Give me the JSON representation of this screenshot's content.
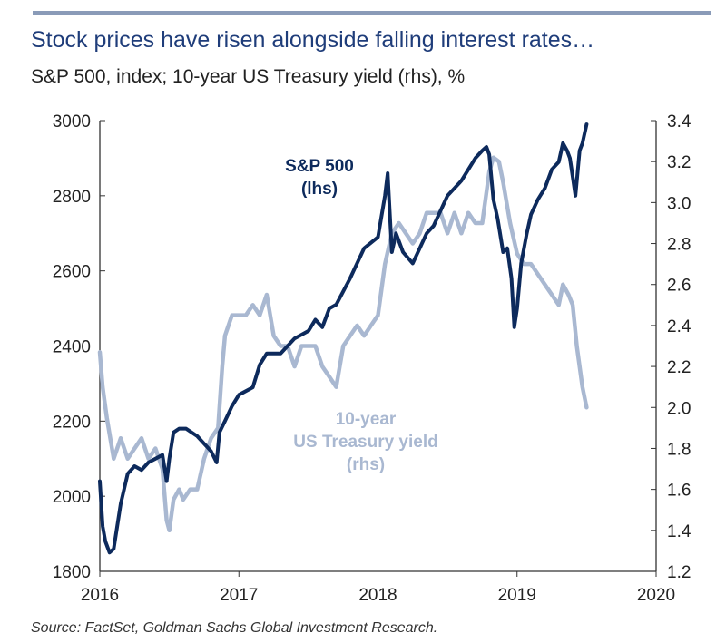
{
  "header": {
    "title": "Stock prices have risen alongside falling interest rates…",
    "subtitle": "S&P 500, index; 10-year US Treasury yield (rhs), %"
  },
  "footer": {
    "source": "Source: FactSet, Goldman Sachs Global Investment Research."
  },
  "chart_data": {
    "type": "line",
    "title": "Stock prices have risen alongside falling interest rates…",
    "subtitle": "S&P 500, index; 10-year US Treasury yield (rhs), %",
    "x_ticks": [
      "2016",
      "2017",
      "2018",
      "2019",
      "2020"
    ],
    "xlim": [
      2016,
      2020
    ],
    "y_left": {
      "ticks": [
        "1800",
        "2000",
        "2200",
        "2400",
        "2600",
        "2800",
        "3000"
      ],
      "lim": [
        1800,
        3000
      ]
    },
    "y_right": {
      "ticks": [
        "1.2",
        "1.4",
        "1.6",
        "1.8",
        "2.0",
        "2.2",
        "2.4",
        "2.6",
        "2.8",
        "3.0",
        "3.2",
        "3.4"
      ],
      "lim": [
        1.2,
        3.4
      ]
    },
    "grid": false,
    "colors": {
      "sp500": "#0d2a5c",
      "treasury": "#a9b8d1",
      "axis": "#333333",
      "topbar": "#8a9bb8"
    },
    "annotations": [
      {
        "lines": [
          "S&P 500",
          "(lhs)"
        ],
        "series": "S&P 500"
      },
      {
        "lines": [
          "10-year",
          "US Treasury yield",
          "(rhs)"
        ],
        "series": "10-year US Treasury yield"
      }
    ],
    "series": [
      {
        "name": "S&P 500",
        "axis": "left",
        "x": [
          2016.0,
          2016.02,
          2016.04,
          2016.07,
          2016.1,
          2016.15,
          2016.2,
          2016.25,
          2016.3,
          2016.35,
          2016.4,
          2016.45,
          2016.48,
          2016.5,
          2016.53,
          2016.57,
          2016.62,
          2016.7,
          2016.75,
          2016.8,
          2016.84,
          2016.86,
          2016.9,
          2016.95,
          2017.0,
          2017.1,
          2017.15,
          2017.2,
          2017.3,
          2017.35,
          2017.4,
          2017.45,
          2017.5,
          2017.55,
          2017.6,
          2017.65,
          2017.7,
          2017.8,
          2017.9,
          2018.0,
          2018.05,
          2018.07,
          2018.1,
          2018.13,
          2018.18,
          2018.25,
          2018.3,
          2018.35,
          2018.4,
          2018.5,
          2018.6,
          2018.7,
          2018.75,
          2018.78,
          2018.8,
          2018.83,
          2018.86,
          2018.9,
          2018.93,
          2018.96,
          2018.98,
          2019.0,
          2019.03,
          2019.07,
          2019.1,
          2019.15,
          2019.2,
          2019.25,
          2019.3,
          2019.33,
          2019.36,
          2019.38,
          2019.4,
          2019.42,
          2019.45,
          2019.47,
          2019.5
        ],
        "values": [
          2040,
          1920,
          1880,
          1850,
          1860,
          1980,
          2060,
          2080,
          2070,
          2090,
          2100,
          2110,
          2040,
          2100,
          2170,
          2180,
          2180,
          2160,
          2140,
          2120,
          2090,
          2170,
          2200,
          2240,
          2270,
          2290,
          2350,
          2380,
          2380,
          2400,
          2420,
          2430,
          2440,
          2470,
          2450,
          2500,
          2510,
          2580,
          2660,
          2690,
          2800,
          2860,
          2650,
          2700,
          2650,
          2620,
          2660,
          2700,
          2720,
          2800,
          2840,
          2900,
          2920,
          2930,
          2910,
          2790,
          2740,
          2650,
          2660,
          2580,
          2450,
          2500,
          2620,
          2700,
          2750,
          2790,
          2820,
          2870,
          2890,
          2940,
          2920,
          2900,
          2850,
          2800,
          2920,
          2940,
          2990
        ]
      },
      {
        "name": "10-year US Treasury yield",
        "axis": "right",
        "x": [
          2016.0,
          2016.02,
          2016.05,
          2016.1,
          2016.15,
          2016.2,
          2016.25,
          2016.3,
          2016.35,
          2016.4,
          2016.45,
          2016.48,
          2016.5,
          2016.53,
          2016.57,
          2016.6,
          2016.65,
          2016.7,
          2016.75,
          2016.8,
          2016.85,
          2016.88,
          2016.9,
          2016.95,
          2017.0,
          2017.05,
          2017.1,
          2017.15,
          2017.2,
          2017.25,
          2017.3,
          2017.35,
          2017.4,
          2017.45,
          2017.5,
          2017.55,
          2017.6,
          2017.65,
          2017.7,
          2017.75,
          2017.8,
          2017.85,
          2017.9,
          2017.95,
          2018.0,
          2018.05,
          2018.1,
          2018.15,
          2018.2,
          2018.25,
          2018.3,
          2018.35,
          2018.4,
          2018.45,
          2018.5,
          2018.55,
          2018.6,
          2018.65,
          2018.7,
          2018.75,
          2018.8,
          2018.83,
          2018.87,
          2018.9,
          2018.95,
          2019.0,
          2019.05,
          2019.1,
          2019.15,
          2019.2,
          2019.25,
          2019.3,
          2019.33,
          2019.37,
          2019.4,
          2019.43,
          2019.47,
          2019.5
        ],
        "values": [
          2.27,
          2.1,
          1.95,
          1.75,
          1.85,
          1.75,
          1.8,
          1.85,
          1.75,
          1.8,
          1.7,
          1.45,
          1.4,
          1.55,
          1.6,
          1.55,
          1.6,
          1.6,
          1.75,
          1.85,
          1.9,
          2.2,
          2.35,
          2.45,
          2.45,
          2.45,
          2.5,
          2.45,
          2.55,
          2.35,
          2.3,
          2.3,
          2.2,
          2.3,
          2.3,
          2.3,
          2.2,
          2.15,
          2.1,
          2.3,
          2.35,
          2.4,
          2.35,
          2.4,
          2.45,
          2.7,
          2.85,
          2.9,
          2.85,
          2.8,
          2.85,
          2.95,
          2.95,
          2.95,
          2.85,
          2.95,
          2.85,
          2.95,
          2.9,
          2.9,
          3.15,
          3.22,
          3.2,
          3.1,
          2.9,
          2.75,
          2.7,
          2.7,
          2.65,
          2.6,
          2.55,
          2.5,
          2.6,
          2.55,
          2.5,
          2.3,
          2.1,
          2.0
        ]
      }
    ]
  }
}
